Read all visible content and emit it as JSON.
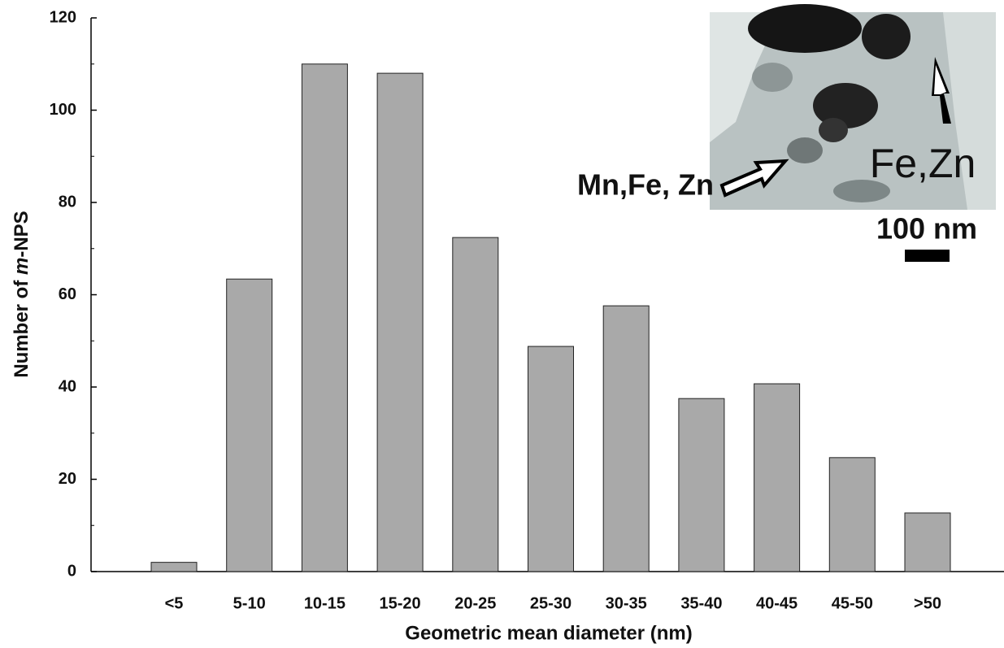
{
  "chart_data": {
    "type": "bar",
    "xlabel": "Geometric mean diameter (nm)",
    "ylabel": [
      "Number of ",
      "m",
      "-NPS"
    ],
    "categories": [
      "<5",
      "5-10",
      "10-15",
      "15-20",
      "20-25",
      "25-30",
      "30-35",
      "35-40",
      "40-45",
      "45-50",
      ">50"
    ],
    "values": [
      2,
      63.4,
      110,
      108,
      72.4,
      48.8,
      57.6,
      37.5,
      40.7,
      24.7,
      12.7
    ],
    "color": "#a9a9a9",
    "ylim": [
      0,
      120
    ],
    "yticks": [
      0,
      20,
      40,
      60,
      80,
      100,
      120
    ],
    "yminorticks": [
      10,
      30,
      50,
      70,
      90,
      110
    ],
    "annotations": [
      "Mn,Fe, Zn",
      "Fe,Zn",
      "100 nm"
    ]
  }
}
